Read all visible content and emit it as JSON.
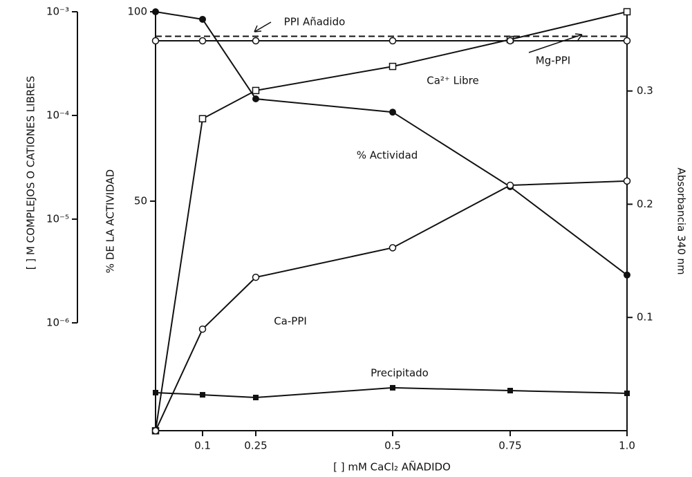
{
  "chart_data": {
    "type": "line",
    "xlabel": "[ ] mM CaCl₂ AÑADIDO",
    "ylabel": "% DE LA ACTIVIDAD",
    "y2label": "Absorbancia 340 nm",
    "y3label": "[ ] M COMPLEJOS O CATIONES LIBRES",
    "categories": [
      null,
      "0.1",
      "0.25",
      "0.5",
      "0.75",
      "1.0"
    ],
    "ylim": [
      -10.6,
      100
    ],
    "yticks": [
      50,
      100
    ],
    "y2lim": [
      0,
      0.37
    ],
    "y2ticks": [
      0.1,
      0.2,
      0.3
    ],
    "y3lim": [
      1e-06,
      0.001
    ],
    "y3log": true,
    "y3ticks": [
      {
        "value": 1e-06,
        "label": "10⁻⁶"
      },
      {
        "value": 1e-05,
        "label": "10⁻⁵"
      },
      {
        "value": 0.0001,
        "label": "10⁻⁴"
      },
      {
        "value": 0.001,
        "label": "10⁻³"
      }
    ],
    "series": [
      {
        "name": "% Actividad",
        "color": "#111",
        "marker": "filled-circle",
        "values": [
          100,
          98.0,
          77.0,
          73.5,
          53.8,
          30.5
        ]
      },
      {
        "name": "Ca²⁺ Libre",
        "color": "#111",
        "marker": "open-square",
        "axis": "y3",
        "values": [
          9.1e-08,
          9.3e-05,
          0.000174,
          0.000297,
          0.00054,
          0.001
        ]
      },
      {
        "name": "Ca-PPI",
        "color": "#111",
        "marker": "open-circle",
        "axis": "y3",
        "values": [
          9.1e-08,
          8.7e-07,
          2.75e-06,
          5.3e-06,
          2.12e-05,
          2.33e-05
        ]
      },
      {
        "name": "Mg-PPI",
        "color": "#111",
        "marker": "open-circle",
        "axis": "y3",
        "values": [
          0.000525,
          0.000525,
          0.000525,
          0.000525,
          0.000525,
          0.000525
        ]
      },
      {
        "name": "PPI Añadido",
        "color": "#111",
        "marker": "none",
        "dashed": true,
        "axis": "y3",
        "values": [
          0.00058,
          0.00058,
          0.00058,
          0.00058,
          0.00058,
          0.00058
        ]
      },
      {
        "name": "Precipitado",
        "color": "#111",
        "marker": "filled-square",
        "axis": "y2",
        "values": [
          0.0336,
          0.0317,
          0.0293,
          0.0379,
          0.0354,
          0.033
        ]
      }
    ]
  }
}
